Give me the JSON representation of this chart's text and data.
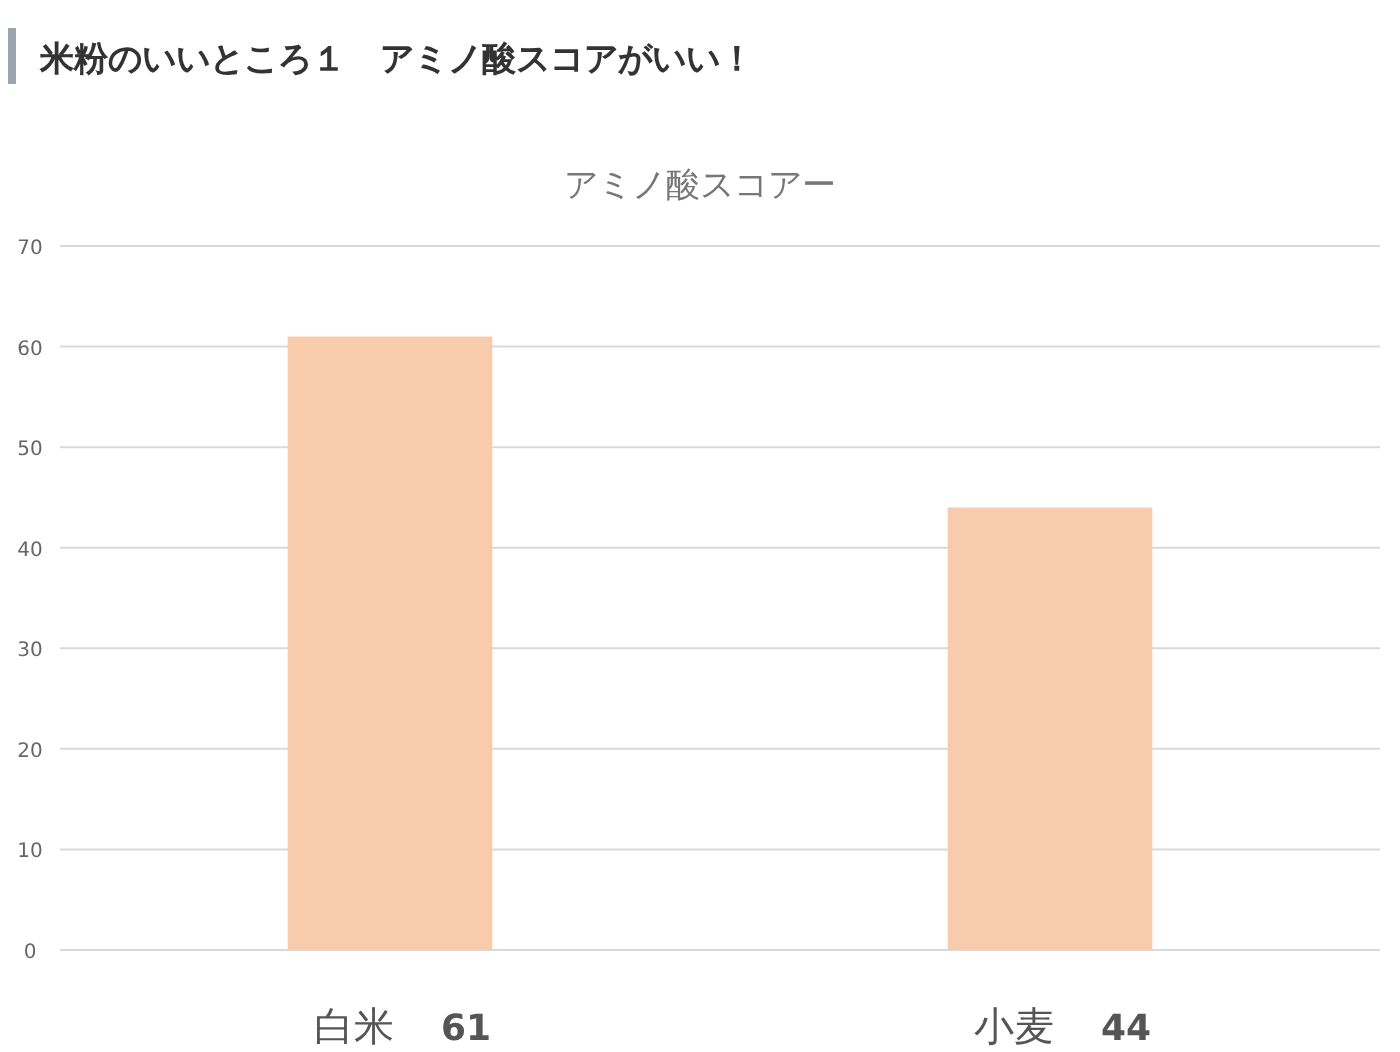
{
  "chart_data": {
    "type": "bar",
    "title": "米粉のいいところ１　アミノ酸スコアがいい！",
    "subtitle": "アミノ酸スコアー",
    "categories": [
      "白米",
      "小麦"
    ],
    "values": [
      61,
      44
    ],
    "color": "#f8cbad",
    "data_labels": true,
    "ylim": [
      0,
      70
    ],
    "yticks": [
      0,
      10,
      20,
      30,
      40,
      50,
      60,
      70
    ],
    "grid": "y"
  }
}
